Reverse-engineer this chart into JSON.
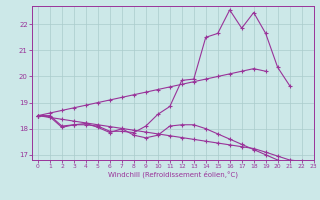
{
  "xlabel": "Windchill (Refroidissement éolien,°C)",
  "background_color": "#cce8e8",
  "line_color": "#993399",
  "grid_color": "#aacccc",
  "ylim": [
    16.8,
    22.7
  ],
  "xlim": [
    -0.5,
    23
  ],
  "yticks": [
    17,
    18,
    19,
    20,
    21,
    22
  ],
  "xticks": [
    0,
    1,
    2,
    3,
    4,
    5,
    6,
    7,
    8,
    9,
    10,
    11,
    12,
    13,
    14,
    15,
    16,
    17,
    18,
    19,
    20,
    21,
    22,
    23
  ],
  "curve_main": [
    18.5,
    18.5,
    18.1,
    18.15,
    18.15,
    18.1,
    17.9,
    17.9,
    17.85,
    18.1,
    18.55,
    18.85,
    19.85,
    19.9,
    21.5,
    21.65,
    22.55,
    21.85,
    22.45,
    21.65,
    20.35,
    19.65,
    null,
    null
  ],
  "curve_lower": [
    18.5,
    18.45,
    18.05,
    18.15,
    18.2,
    18.05,
    17.85,
    18.0,
    17.75,
    17.65,
    17.75,
    18.1,
    18.15,
    18.15,
    18.0,
    17.8,
    17.6,
    17.4,
    17.2,
    17.0,
    16.8,
    null,
    null,
    null
  ],
  "line_up": [
    18.5,
    18.6,
    18.7,
    18.8,
    18.9,
    19.0,
    19.1,
    19.2,
    19.3,
    19.4,
    19.5,
    19.6,
    19.7,
    19.8,
    19.9,
    20.0,
    20.1,
    20.2,
    20.3,
    20.2,
    null,
    null,
    null,
    null
  ],
  "line_down": [
    18.5,
    18.43,
    18.36,
    18.29,
    18.22,
    18.15,
    18.08,
    18.01,
    17.94,
    17.87,
    17.8,
    17.73,
    17.66,
    17.59,
    17.52,
    17.45,
    17.38,
    17.31,
    17.24,
    17.1,
    16.95,
    16.8,
    16.75,
    null
  ]
}
